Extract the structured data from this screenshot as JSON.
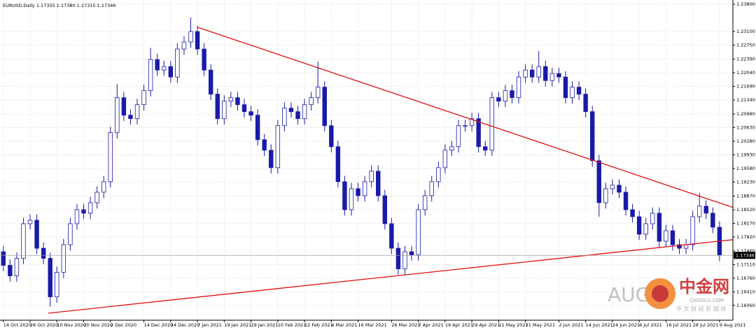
{
  "chart_data": {
    "type": "candlestick",
    "title": "EURUSD,Daily  1.17355 1.17380 1.17315 1.17346",
    "open": [
      1.1744,
      1.1709,
      1.1682,
      1.1727,
      1.1816,
      1.1825,
      1.1753,
      1.1727,
      1.1628,
      1.1691,
      1.1762,
      1.1816,
      1.1852,
      1.1843,
      1.187,
      1.1897,
      1.1924,
      1.205,
      1.214,
      1.2095,
      1.2086,
      1.2122,
      1.2158,
      1.2238,
      1.2211,
      1.222,
      1.2193,
      1.2265,
      1.2283,
      1.231,
      1.2265,
      1.2211,
      1.2149,
      1.2086,
      1.2131,
      1.214,
      1.2122,
      1.2104,
      1.2095,
      1.2032,
      1.2005,
      1.196,
      1.2068,
      1.2113,
      1.2104,
      1.2086,
      1.2122,
      1.214,
      1.2167,
      1.2068,
      1.2014,
      1.1924,
      1.1852,
      1.1906,
      1.1888,
      1.1924,
      1.1951,
      1.1888,
      1.1816,
      1.1753,
      1.17,
      1.1744,
      1.1736,
      1.1852,
      1.1888,
      1.1924,
      1.196,
      1.2005,
      1.2014,
      1.2068,
      1.2068,
      1.2086,
      1.2014,
      1.2005,
      1.214,
      1.2131,
      1.2158,
      1.214,
      1.2193,
      1.2211,
      1.2193,
      1.222,
      1.2184,
      1.2202,
      1.2193,
      1.214,
      1.2167,
      1.2149,
      1.2104,
      1.1978,
      1.187,
      1.1906,
      1.1915,
      1.1897,
      1.1852,
      1.1834,
      1.1789,
      1.1816,
      1.1843,
      1.1771,
      1.1798,
      1.1762,
      1.1753,
      1.1762,
      1.1834,
      1.1861,
      1.1843,
      1.1807
    ],
    "high": [
      1.1759,
      1.1724,
      1.1742,
      1.1831,
      1.184,
      1.184,
      1.1768,
      1.1742,
      1.1706,
      1.1777,
      1.1831,
      1.1867,
      1.1867,
      1.1885,
      1.1912,
      1.1939,
      1.2065,
      1.2175,
      1.2155,
      1.211,
      1.2137,
      1.2173,
      1.2268,
      1.2253,
      1.2235,
      1.2235,
      1.228,
      1.2298,
      1.2346,
      1.2325,
      1.228,
      1.2226,
      1.2164,
      1.2146,
      1.2155,
      1.2155,
      1.2137,
      1.2119,
      1.211,
      1.2047,
      1.202,
      1.2083,
      1.2128,
      1.2128,
      1.2119,
      1.2137,
      1.2155,
      1.2233,
      1.2182,
      1.2083,
      1.2029,
      1.1939,
      1.1921,
      1.1921,
      1.1939,
      1.1966,
      1.1966,
      1.1903,
      1.1831,
      1.1768,
      1.1759,
      1.1759,
      1.1867,
      1.1903,
      1.1939,
      1.1975,
      1.202,
      1.2029,
      1.2083,
      1.2083,
      1.2101,
      1.2101,
      1.2029,
      1.2155,
      1.2155,
      1.2173,
      1.2173,
      1.2208,
      1.2226,
      1.2226,
      1.226,
      1.2235,
      1.2217,
      1.2217,
      1.2208,
      1.2182,
      1.2182,
      1.2164,
      1.2119,
      1.1993,
      1.1921,
      1.193,
      1.193,
      1.1912,
      1.1867,
      1.1849,
      1.1831,
      1.1858,
      1.1858,
      1.1813,
      1.1813,
      1.1777,
      1.1777,
      1.1849,
      1.1895,
      1.1876,
      1.1858,
      1.1822
    ],
    "low": [
      1.1694,
      1.1667,
      1.1667,
      1.1712,
      1.1801,
      1.1738,
      1.1712,
      1.1603,
      1.1613,
      1.1676,
      1.1747,
      1.1801,
      1.1828,
      1.1828,
      1.1855,
      1.1882,
      1.1909,
      1.2035,
      1.208,
      1.2071,
      1.2071,
      1.2107,
      1.2143,
      1.2196,
      1.2196,
      1.2178,
      1.2178,
      1.225,
      1.2268,
      1.225,
      1.2196,
      1.2134,
      1.2071,
      1.2071,
      1.2116,
      1.2107,
      1.2089,
      1.208,
      1.2017,
      1.199,
      1.1945,
      1.1945,
      1.2053,
      1.2089,
      1.2071,
      1.2071,
      1.2107,
      1.2125,
      1.2053,
      1.1999,
      1.1909,
      1.1837,
      1.1837,
      1.1873,
      1.1873,
      1.1909,
      1.1873,
      1.1801,
      1.1738,
      1.1685,
      1.1685,
      1.1721,
      1.1721,
      1.1837,
      1.1873,
      1.1909,
      1.1945,
      1.199,
      1.1999,
      1.2053,
      1.2053,
      1.1999,
      1.199,
      1.199,
      1.2116,
      1.2116,
      1.2125,
      1.2125,
      1.2178,
      1.2178,
      1.2178,
      1.2169,
      1.2169,
      1.2178,
      1.2125,
      1.2125,
      1.2134,
      1.2089,
      1.1963,
      1.1834,
      1.1855,
      1.1891,
      1.1882,
      1.1837,
      1.1819,
      1.1774,
      1.1774,
      1.1801,
      1.1756,
      1.1756,
      1.1747,
      1.1738,
      1.1738,
      1.1747,
      1.1819,
      1.1828,
      1.1792,
      1.172
    ],
    "close": [
      1.1709,
      1.1682,
      1.1727,
      1.1816,
      1.1825,
      1.1753,
      1.1727,
      1.1628,
      1.1691,
      1.1762,
      1.1816,
      1.1852,
      1.1843,
      1.187,
      1.1897,
      1.1924,
      1.205,
      1.214,
      1.2095,
      1.2086,
      1.2122,
      1.2158,
      1.2238,
      1.2211,
      1.222,
      1.2193,
      1.2265,
      1.2283,
      1.231,
      1.2265,
      1.2211,
      1.2149,
      1.2086,
      1.2131,
      1.214,
      1.2122,
      1.2104,
      1.2095,
      1.2032,
      1.2005,
      1.196,
      1.2068,
      1.2113,
      1.2104,
      1.2086,
      1.2122,
      1.214,
      1.2167,
      1.2068,
      1.2014,
      1.1924,
      1.1852,
      1.1906,
      1.1888,
      1.1924,
      1.1951,
      1.1888,
      1.1816,
      1.1753,
      1.17,
      1.1744,
      1.1736,
      1.1852,
      1.1888,
      1.1924,
      1.196,
      1.2005,
      1.2014,
      1.2068,
      1.2068,
      1.2086,
      1.2014,
      1.2005,
      1.214,
      1.2131,
      1.2158,
      1.214,
      1.2193,
      1.2211,
      1.2193,
      1.222,
      1.2184,
      1.2202,
      1.2193,
      1.214,
      1.2167,
      1.2149,
      1.2104,
      1.1978,
      1.187,
      1.1906,
      1.1915,
      1.1897,
      1.1852,
      1.1834,
      1.1789,
      1.1816,
      1.1843,
      1.1771,
      1.1798,
      1.1762,
      1.1753,
      1.1762,
      1.1834,
      1.1861,
      1.1843,
      1.1807,
      1.1735
    ],
    "bull_color": "#ffffff",
    "bear_color": "#1a1aa8",
    "outline_color": "#1a1aa8",
    "xlim": [
      -0.5,
      109
    ],
    "xticks": [
      {
        "value": 0,
        "label": "14 Oct 2020"
      },
      {
        "value": 4,
        "label": "26 Oct 2020"
      },
      {
        "value": 8,
        "label": "10 Nov 2020"
      },
      {
        "value": 12,
        "label": "20 Nov 2020"
      },
      {
        "value": 16,
        "label": "2 Dec 2020"
      },
      {
        "value": 21,
        "label": "14 Dec 2020"
      },
      {
        "value": 25,
        "label": "24 Dec 2020"
      },
      {
        "value": 29,
        "label": "7 Jan 2021"
      },
      {
        "value": 33,
        "label": "19 Jan 2021"
      },
      {
        "value": 37,
        "label": "29 Jan 2021"
      },
      {
        "value": 41,
        "label": "10 Feb 2021"
      },
      {
        "value": 45,
        "label": "22 Feb 2021"
      },
      {
        "value": 49,
        "label": "4 Mar 2021"
      },
      {
        "value": 53,
        "label": "16 Mar 2021"
      },
      {
        "value": 58,
        "label": "26 Mar 2021"
      },
      {
        "value": 62,
        "label": "7 Apr 2021"
      },
      {
        "value": 66,
        "label": "19 Apr 2021"
      },
      {
        "value": 70,
        "label": "29 Apr 2021"
      },
      {
        "value": 74,
        "label": "11 May 2021"
      },
      {
        "value": 78,
        "label": "21 May 2021"
      },
      {
        "value": 83,
        "label": "2 Jun 2021"
      },
      {
        "value": 87,
        "label": "14 Jun 2021"
      },
      {
        "value": 91,
        "label": "24 Jun 2021"
      },
      {
        "value": 95,
        "label": "6 Jul 2021"
      },
      {
        "value": 99,
        "label": "16 Jul 2021"
      },
      {
        "value": 103,
        "label": "28 Jul 2021"
      },
      {
        "value": 107,
        "label": "9 Aug 2021"
      }
    ],
    "ylim": [
      1.1568,
      1.2391
    ],
    "yticks": [
      {
        "value": 1.238,
        "label": "1.23800"
      },
      {
        "value": 1.231,
        "label": "1.23100"
      },
      {
        "value": 1.2275,
        "label": "1.22750"
      },
      {
        "value": 1.2239,
        "label": "1.22390"
      },
      {
        "value": 1.2204,
        "label": "1.22040"
      },
      {
        "value": 1.2169,
        "label": "1.21690"
      },
      {
        "value": 1.2134,
        "label": "1.21340"
      },
      {
        "value": 1.2098,
        "label": "1.20980"
      },
      {
        "value": 1.2063,
        "label": "1.20630"
      },
      {
        "value": 1.2028,
        "label": "1.20280"
      },
      {
        "value": 1.1993,
        "label": "1.19930"
      },
      {
        "value": 1.1958,
        "label": "1.19580"
      },
      {
        "value": 1.1923,
        "label": "1.19230"
      },
      {
        "value": 1.1887,
        "label": "1.18870"
      },
      {
        "value": 1.1852,
        "label": "1.18520"
      },
      {
        "value": 1.1817,
        "label": "1.18170"
      },
      {
        "value": 1.1782,
        "label": "1.17820"
      },
      {
        "value": 1.1746,
        "label": "1.17460"
      },
      {
        "value": 1.1711,
        "label": "1.17110"
      },
      {
        "value": 1.1676,
        "label": "1.16760"
      },
      {
        "value": 1.1641,
        "label": "1.16410"
      },
      {
        "value": 1.1606,
        "label": "1.16060"
      }
    ],
    "grid": true,
    "current_price": 1.17346,
    "trendlines": [
      {
        "x": [
          29,
          109
        ],
        "y": [
          1.2321,
          1.1858
        ],
        "color": "#e01010"
      },
      {
        "x": [
          6.7,
          109
        ],
        "y": [
          1.1586,
          1.1775
        ],
        "color": "#e01010"
      }
    ],
    "watermark": {
      "left": "AUG",
      "brand": "中金网",
      "site": "CNGOLD.COM",
      "tagline": "中 文 财 经 新 媒 体"
    }
  }
}
